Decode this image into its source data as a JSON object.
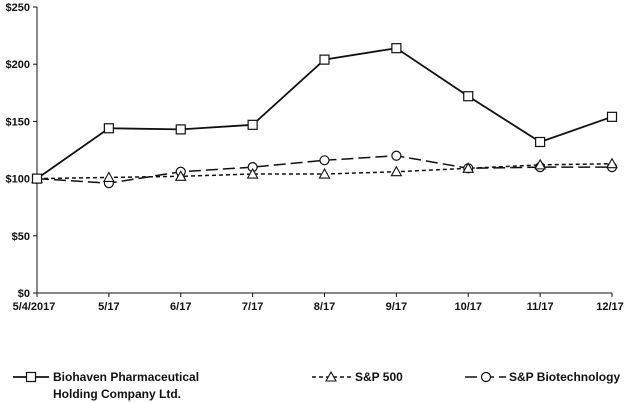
{
  "chart_data": {
    "type": "line",
    "title": "",
    "xlabel": "",
    "ylabel": "",
    "categories": [
      "5/4/2017",
      "5/17",
      "6/17",
      "7/17",
      "8/17",
      "9/17",
      "10/17",
      "11/17",
      "12/17"
    ],
    "y_ticks": [
      "$0",
      "$50",
      "$100",
      "$150",
      "$200",
      "$250"
    ],
    "ylim": [
      0,
      250
    ],
    "grid": false,
    "legend_position": "bottom",
    "series": [
      {
        "name_line1": "Biohaven Pharmaceutical",
        "name_line2": "Holding Company Ltd.",
        "marker": "square",
        "dash": "solid",
        "color": "#111111",
        "values": [
          100,
          144,
          143,
          147,
          204,
          214,
          172,
          132,
          154
        ]
      },
      {
        "name_line1": "S&P 500",
        "name_line2": "",
        "marker": "triangle",
        "dash": "short-dash",
        "color": "#111111",
        "values": [
          100,
          101,
          102,
          104,
          104,
          106,
          109,
          112,
          113
        ]
      },
      {
        "name_line1": "S&P Biotechnology",
        "name_line2": "",
        "marker": "circle",
        "dash": "long-dash",
        "color": "#111111",
        "values": [
          100,
          96,
          106,
          110,
          116,
          120,
          109,
          110,
          110
        ]
      }
    ]
  }
}
